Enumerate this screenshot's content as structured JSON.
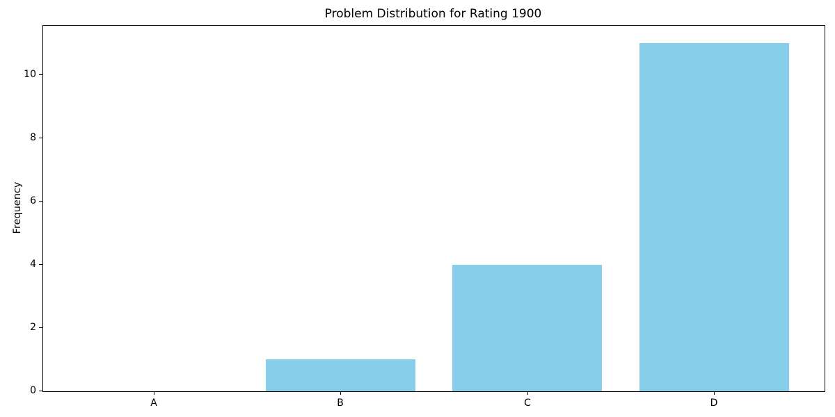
{
  "chart_data": {
    "type": "bar",
    "title": "Problem Distribution for Rating 1900",
    "xlabel": "",
    "ylabel": "Frequency",
    "categories": [
      "A",
      "B",
      "C",
      "D"
    ],
    "values": [
      0,
      1,
      4,
      11
    ],
    "yticks": [
      0,
      2,
      4,
      6,
      8,
      10
    ],
    "ylim": [
      0,
      11.55
    ],
    "xlim": [
      -0.59,
      3.59
    ],
    "bar_width_fraction": 0.8,
    "bar_color": "#87CEEB",
    "spine_color": "#000000",
    "grid": false,
    "legend": "none"
  }
}
